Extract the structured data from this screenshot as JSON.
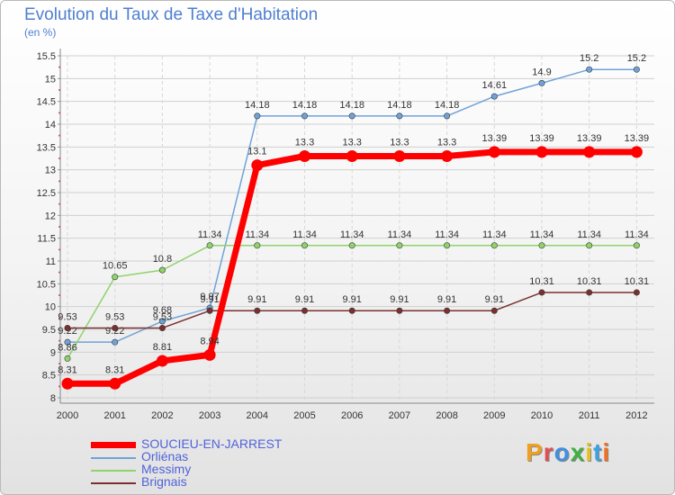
{
  "chart_data": {
    "type": "line",
    "title": "Evolution du Taux de Taxe d'Habitation",
    "subtitle": "(en %)",
    "xlabel": "",
    "ylabel": "",
    "ylim": [
      8,
      15.5
    ],
    "grid": true,
    "categories": [
      "2000",
      "2001",
      "2002",
      "2003",
      "2004",
      "2005",
      "2006",
      "2007",
      "2008",
      "2009",
      "2010",
      "2011",
      "2012"
    ],
    "yticks": [
      "8",
      "8.5",
      "9",
      "9.5",
      "10",
      "10.5",
      "11",
      "11.5",
      "12",
      "12.5",
      "13",
      "13.5",
      "14",
      "14.5",
      "15",
      "15.5"
    ],
    "series": [
      {
        "name": "SOUCIEU-EN-JARREST",
        "color": "#ff0000",
        "values": [
          8.31,
          8.31,
          8.81,
          8.94,
          13.1,
          13.3,
          13.3,
          13.3,
          13.3,
          13.39,
          13.39,
          13.39,
          13.39
        ],
        "labels": [
          "8.31",
          "8.31",
          "8.81",
          "8.94",
          "13.1",
          "13.3",
          "13.3",
          "13.3",
          "13.3",
          "13.39",
          "13.39",
          "13.39",
          "13.39"
        ]
      },
      {
        "name": "Orliénas",
        "color": "#6fa3d8",
        "values": [
          9.22,
          9.22,
          9.68,
          9.97,
          14.18,
          14.18,
          14.18,
          14.18,
          14.18,
          14.61,
          14.9,
          15.2,
          15.2
        ],
        "labels": [
          "9.22",
          "9.22",
          "9.68",
          "9.97",
          "14.18",
          "14.18",
          "14.18",
          "14.18",
          "14.18",
          "14.61",
          "14.9",
          "15.2",
          "15.2"
        ]
      },
      {
        "name": "Messimy",
        "color": "#8fd36b",
        "values": [
          8.86,
          10.65,
          10.8,
          11.34,
          11.34,
          11.34,
          11.34,
          11.34,
          11.34,
          11.34,
          11.34,
          11.34,
          11.34
        ],
        "labels": [
          "8.86",
          "10.65",
          "10.8",
          "11.34",
          "11.34",
          "11.34",
          "11.34",
          "11.34",
          "11.34",
          "11.34",
          "11.34",
          "11.34",
          "11.34"
        ]
      },
      {
        "name": "Brignais",
        "color": "#7a3030",
        "values": [
          9.53,
          9.53,
          9.53,
          9.91,
          9.91,
          9.91,
          9.91,
          9.91,
          9.91,
          9.91,
          10.31,
          10.31,
          10.31
        ],
        "labels": [
          "9.53",
          "9.53",
          "9.53",
          "9.91",
          "9.91",
          "9.91",
          "9.91",
          "9.91",
          "9.91",
          "9.91",
          "10.31",
          "10.31",
          "10.31"
        ]
      }
    ]
  },
  "brand": {
    "text": "Proxiti",
    "letters": [
      "P",
      "r",
      "o",
      "x",
      "i",
      "t",
      "i"
    ],
    "colors": [
      "#f0a020",
      "#e05050",
      "#4090e0",
      "#40b040",
      "#e8c020",
      "#40a0e0",
      "#f07020"
    ]
  }
}
